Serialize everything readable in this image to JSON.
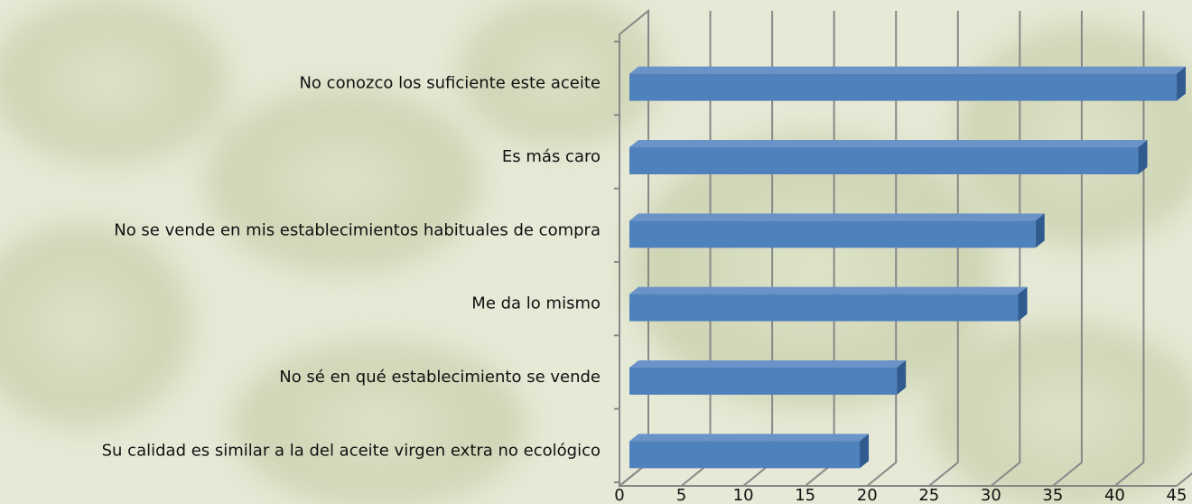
{
  "chart_data": {
    "type": "bar",
    "orientation": "horizontal",
    "categories": [
      "No conozco los suficiente este aceite",
      "Es más caro",
      "No se vende en mis establecimientos habituales de compra",
      "Me da lo mismo",
      "No sé en qué establecimiento se vende",
      "Su calidad es similar a la del aceite virgen extra no ecológico"
    ],
    "values": [
      44.2,
      41.1,
      32.8,
      31.4,
      21.6,
      18.6
    ],
    "color": "#4f81bd",
    "xlim": [
      0,
      45
    ],
    "xticks": [
      0,
      5,
      10,
      15,
      20,
      25,
      30,
      35,
      40,
      45
    ],
    "grid": true
  }
}
